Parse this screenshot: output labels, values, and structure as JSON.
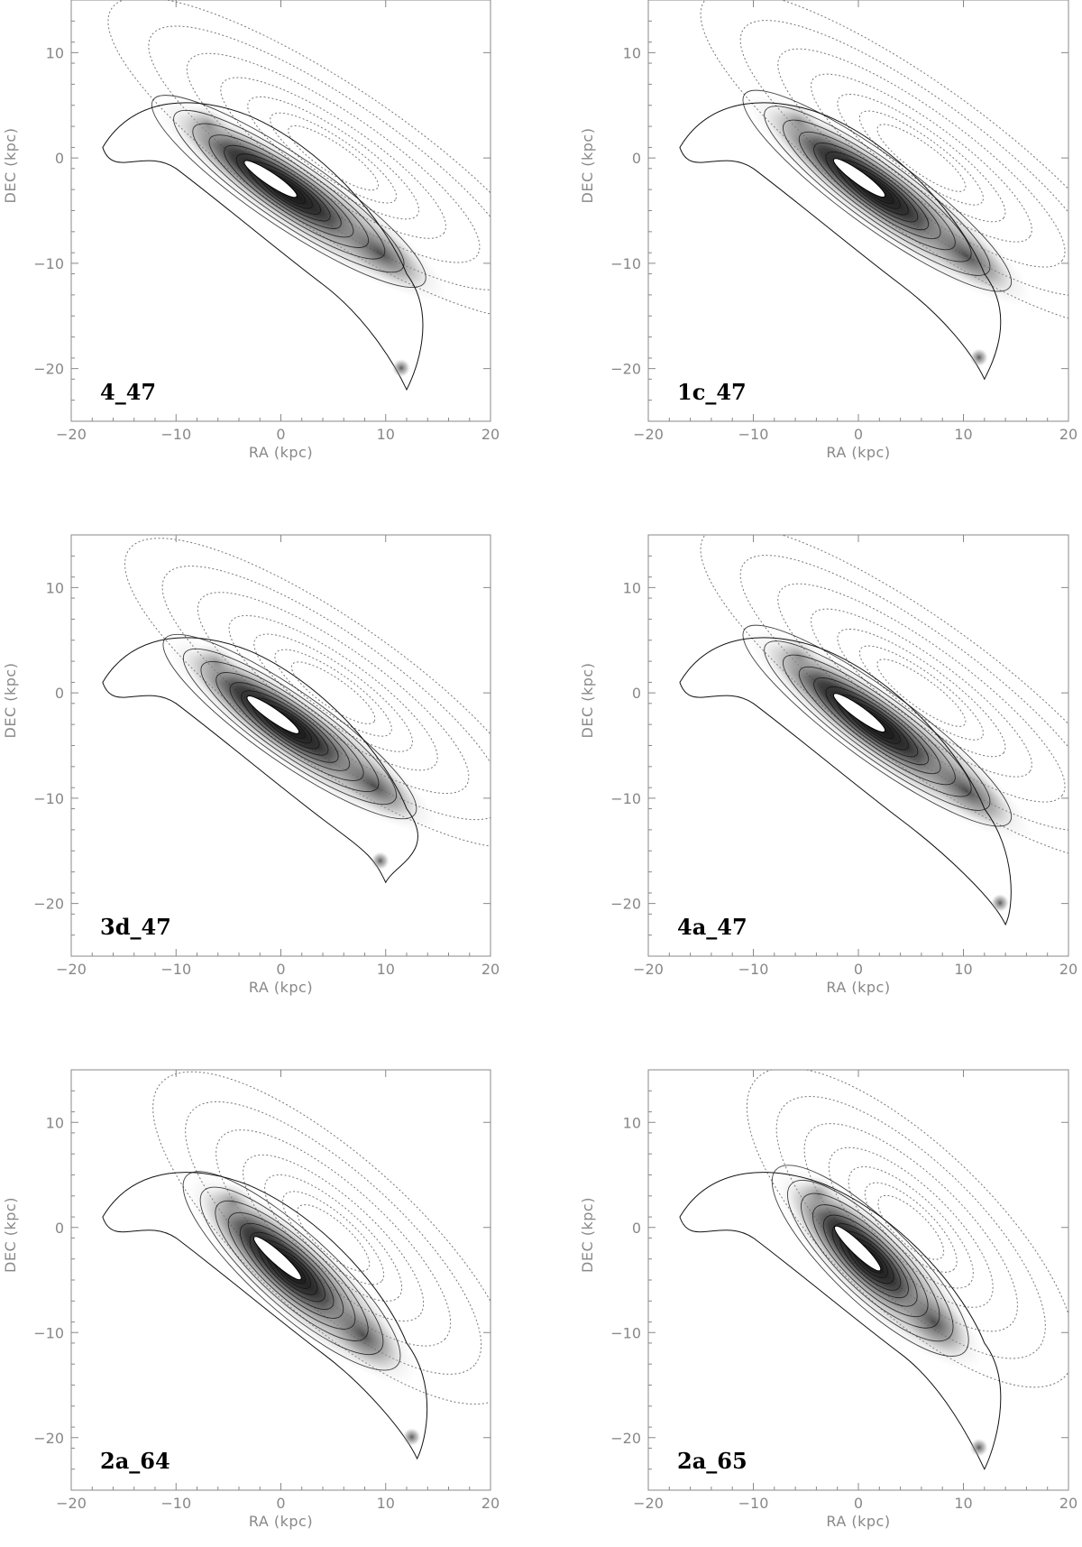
{
  "chart_data": [
    {
      "type": "contour",
      "label": "4_47",
      "xlabel": "RA (kpc)",
      "ylabel": "DEC (kpc)",
      "xlim": [
        -20,
        20
      ],
      "ylim": [
        -25,
        15
      ],
      "xticks": [
        -20,
        -10,
        0,
        10,
        20
      ],
      "yticks": [
        10,
        0,
        -10,
        -20
      ],
      "stream": {
        "angle_deg": -34,
        "length_kpc": 30,
        "width_kpc": 8,
        "center": [
          2,
          -4
        ]
      },
      "tail_end": [
        12,
        -22
      ]
    },
    {
      "type": "contour",
      "label": "1c_47",
      "xlabel": "RA (kpc)",
      "ylabel": "DEC (kpc)",
      "xlim": [
        -20,
        20
      ],
      "ylim": [
        -25,
        15
      ],
      "xticks": [
        -20,
        -10,
        0,
        10,
        20
      ],
      "yticks": [
        10,
        0,
        -10,
        -20
      ],
      "stream": {
        "angle_deg": -36,
        "length_kpc": 30,
        "width_kpc": 8,
        "center": [
          3,
          -4
        ]
      },
      "tail_end": [
        12,
        -21
      ]
    },
    {
      "type": "contour",
      "label": "3d_47",
      "xlabel": "RA (kpc)",
      "ylabel": "DEC (kpc)",
      "xlim": [
        -20,
        20
      ],
      "ylim": [
        -25,
        15
      ],
      "xticks": [
        -20,
        -10,
        0,
        10,
        20
      ],
      "yticks": [
        10,
        0,
        -10,
        -20
      ],
      "stream": {
        "angle_deg": -35,
        "length_kpc": 28,
        "width_kpc": 8,
        "center": [
          2,
          -4
        ]
      },
      "tail_end": [
        10,
        -18
      ]
    },
    {
      "type": "contour",
      "label": "4a_47",
      "xlabel": "RA (kpc)",
      "ylabel": "DEC (kpc)",
      "xlim": [
        -20,
        20
      ],
      "ylim": [
        -25,
        15
      ],
      "xticks": [
        -20,
        -10,
        0,
        10,
        20
      ],
      "yticks": [
        10,
        0,
        -10,
        -20
      ],
      "stream": {
        "angle_deg": -36,
        "length_kpc": 30,
        "width_kpc": 8,
        "center": [
          3,
          -4
        ]
      },
      "tail_end": [
        14,
        -22
      ]
    },
    {
      "type": "contour",
      "label": "2a_64",
      "xlabel": "RA (kpc)",
      "ylabel": "DEC (kpc)",
      "xlim": [
        -20,
        20
      ],
      "ylim": [
        -25,
        15
      ],
      "xticks": [
        -20,
        -10,
        0,
        10,
        20
      ],
      "yticks": [
        10,
        0,
        -10,
        -20
      ],
      "stream": {
        "angle_deg": -42,
        "length_kpc": 26,
        "width_kpc": 9,
        "center": [
          2,
          -5
        ]
      },
      "tail_end": [
        13,
        -22
      ]
    },
    {
      "type": "contour",
      "label": "2a_65",
      "xlabel": "RA (kpc)",
      "ylabel": "DEC (kpc)",
      "xlim": [
        -20,
        20
      ],
      "ylim": [
        -25,
        15
      ],
      "xticks": [
        -20,
        -10,
        0,
        10,
        20
      ],
      "yticks": [
        10,
        0,
        -10,
        -20
      ],
      "stream": {
        "angle_deg": -44,
        "length_kpc": 24,
        "width_kpc": 9,
        "center": [
          2,
          -4
        ]
      },
      "tail_end": [
        12,
        -23
      ]
    }
  ]
}
